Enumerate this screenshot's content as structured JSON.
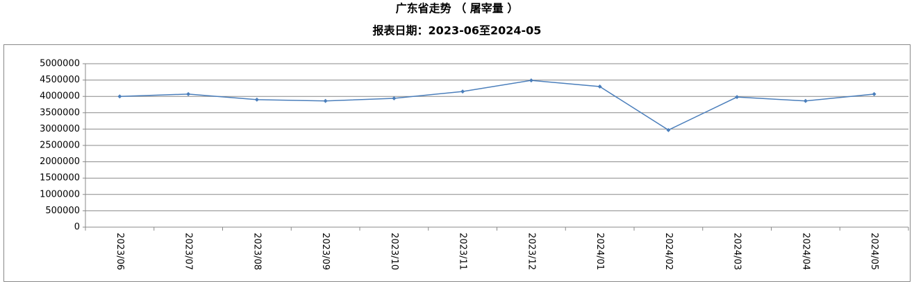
{
  "chart_data": {
    "type": "line",
    "title": "广东省走势 （ 屠宰量 ）",
    "subtitle": "报表日期：2023-06至2024-05",
    "categories": [
      "2023/06",
      "2023/07",
      "2023/08",
      "2023/09",
      "2023/10",
      "2023/11",
      "2023/12",
      "2024/01",
      "2024/02",
      "2024/03",
      "2024/04",
      "2024/05"
    ],
    "series": [
      {
        "color": "#4a7ebb",
        "values": [
          4000000,
          4070000,
          3900000,
          3860000,
          3940000,
          4150000,
          4490000,
          4300000,
          2970000,
          3980000,
          3860000,
          4070000
        ]
      }
    ],
    "ylim": [
      0,
      5000000
    ],
    "yticks": [
      0,
      500000,
      1000000,
      1500000,
      2000000,
      2500000,
      3000000,
      3500000,
      4000000,
      4500000,
      5000000
    ],
    "grid": true
  }
}
